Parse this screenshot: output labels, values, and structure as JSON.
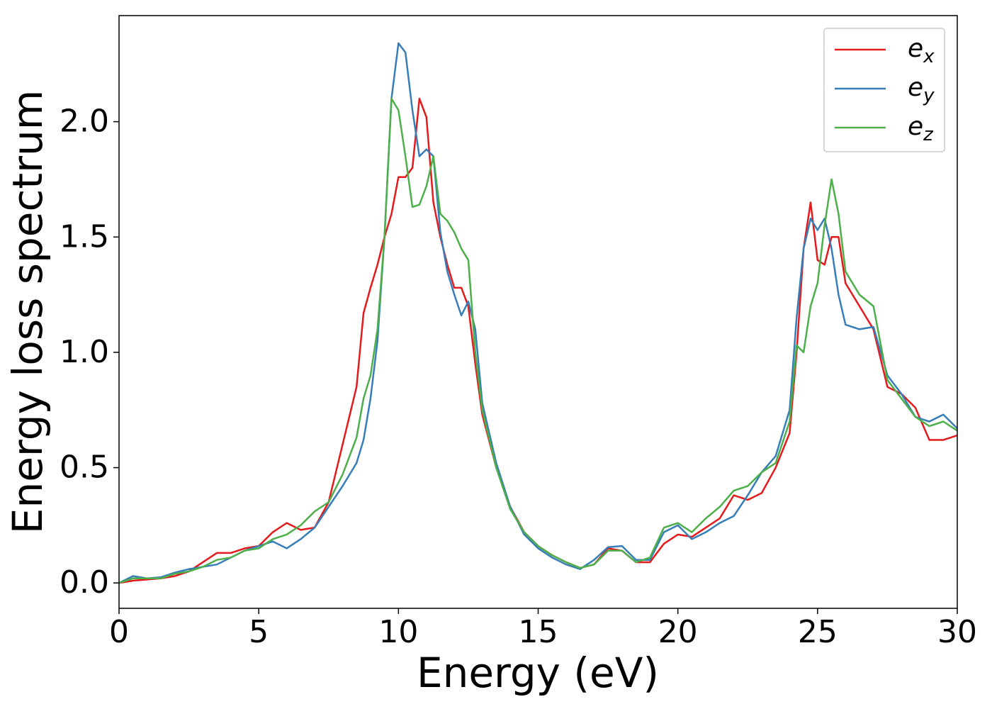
{
  "chart_data": {
    "type": "line",
    "xlabel": "Energy (eV)",
    "ylabel": "Energy loss spectrum",
    "x": [
      0,
      0.5,
      1,
      1.5,
      2,
      2.5,
      3,
      3.5,
      4,
      4.5,
      5,
      5.5,
      6,
      6.5,
      7,
      7.5,
      8,
      8.5,
      8.75,
      9,
      9.25,
      9.5,
      9.75,
      10,
      10.25,
      10.5,
      10.75,
      11,
      11.25,
      11.5,
      11.75,
      12,
      12.25,
      12.5,
      12.75,
      13,
      13.5,
      14,
      14.5,
      15,
      15.5,
      16,
      16.5,
      17,
      17.5,
      18,
      18.5,
      19,
      19.5,
      20,
      20.5,
      21,
      21.5,
      22,
      22.5,
      23,
      23.5,
      24,
      24.25,
      24.5,
      24.75,
      25,
      25.25,
      25.5,
      25.75,
      26,
      26.5,
      27,
      27.5,
      28,
      28.5,
      29,
      29.5,
      30
    ],
    "series": [
      {
        "name": "e_x",
        "color": "#e41a1c",
        "values": [
          0,
          0.01,
          0.015,
          0.02,
          0.03,
          0.05,
          0.09,
          0.13,
          0.13,
          0.15,
          0.16,
          0.22,
          0.26,
          0.23,
          0.24,
          0.35,
          0.6,
          0.85,
          1.17,
          1.28,
          1.38,
          1.5,
          1.6,
          1.76,
          1.76,
          1.8,
          2.1,
          2.02,
          1.65,
          1.5,
          1.38,
          1.28,
          1.28,
          1.2,
          0.95,
          0.73,
          0.5,
          0.33,
          0.22,
          0.16,
          0.12,
          0.09,
          0.065,
          0.08,
          0.15,
          0.14,
          0.09,
          0.09,
          0.17,
          0.21,
          0.2,
          0.24,
          0.28,
          0.38,
          0.36,
          0.39,
          0.5,
          0.65,
          1.0,
          1.45,
          1.65,
          1.4,
          1.38,
          1.5,
          1.5,
          1.3,
          1.2,
          1.1,
          0.85,
          0.82,
          0.76,
          0.62,
          0.62,
          0.64
        ]
      },
      {
        "name": "e_y",
        "color": "#377eb8",
        "values": [
          0,
          0.03,
          0.02,
          0.025,
          0.045,
          0.06,
          0.07,
          0.08,
          0.11,
          0.14,
          0.16,
          0.18,
          0.15,
          0.19,
          0.24,
          0.33,
          0.42,
          0.52,
          0.62,
          0.8,
          1.05,
          1.5,
          2.1,
          2.34,
          2.3,
          2.05,
          1.85,
          1.88,
          1.85,
          1.52,
          1.35,
          1.25,
          1.16,
          1.22,
          1.1,
          0.78,
          0.52,
          0.33,
          0.21,
          0.15,
          0.11,
          0.08,
          0.06,
          0.1,
          0.155,
          0.16,
          0.1,
          0.1,
          0.22,
          0.25,
          0.19,
          0.22,
          0.26,
          0.29,
          0.38,
          0.48,
          0.55,
          0.75,
          1.15,
          1.45,
          1.58,
          1.53,
          1.58,
          1.45,
          1.25,
          1.12,
          1.1,
          1.11,
          0.9,
          0.82,
          0.72,
          0.7,
          0.73,
          0.67
        ]
      },
      {
        "name": "e_z",
        "color": "#4daf4a",
        "values": [
          0,
          0.02,
          0.02,
          0.02,
          0.04,
          0.05,
          0.07,
          0.1,
          0.11,
          0.14,
          0.15,
          0.19,
          0.21,
          0.25,
          0.31,
          0.35,
          0.47,
          0.63,
          0.8,
          0.9,
          1.1,
          1.5,
          2.1,
          2.05,
          1.85,
          1.63,
          1.64,
          1.72,
          1.85,
          1.6,
          1.57,
          1.52,
          1.45,
          1.4,
          1.0,
          0.75,
          0.5,
          0.32,
          0.22,
          0.16,
          0.12,
          0.09,
          0.065,
          0.08,
          0.14,
          0.14,
          0.09,
          0.11,
          0.24,
          0.26,
          0.22,
          0.28,
          0.33,
          0.4,
          0.42,
          0.48,
          0.52,
          0.7,
          1.03,
          1.0,
          1.2,
          1.3,
          1.55,
          1.75,
          1.6,
          1.35,
          1.25,
          1.2,
          0.88,
          0.8,
          0.72,
          0.68,
          0.7,
          0.66
        ]
      }
    ],
    "xlim": [
      0,
      30
    ],
    "xticks": [
      0,
      5,
      10,
      15,
      20,
      25,
      30
    ],
    "ylim": [
      -0.11,
      2.46
    ],
    "yticks": [
      {
        "value": 0,
        "label": "0.0"
      },
      0.5,
      {
        "value": 1,
        "label": "1.0"
      },
      1.5,
      {
        "value": 2,
        "label": "2.0"
      }
    ],
    "grid": false,
    "legend": "upper right"
  }
}
